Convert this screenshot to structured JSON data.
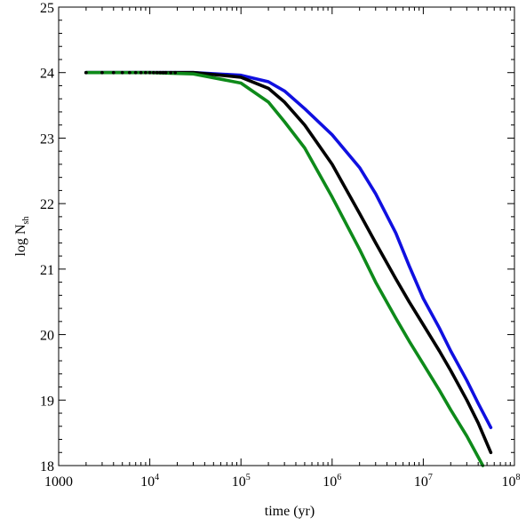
{
  "chart_data": {
    "type": "line",
    "xlabel": "time (yr)",
    "ylabel": "log N",
    "ylabel_subscript": "sh",
    "x_scale": "log",
    "xlim": [
      1000,
      100000000
    ],
    "ylim": [
      18,
      25
    ],
    "x_ticks": [
      {
        "value": 1000,
        "label": "1000",
        "exp": ""
      },
      {
        "value": 10000,
        "label": "10",
        "exp": "4"
      },
      {
        "value": 100000,
        "label": "10",
        "exp": "5"
      },
      {
        "value": 1000000,
        "label": "10",
        "exp": "6"
      },
      {
        "value": 10000000,
        "label": "10",
        "exp": "7"
      },
      {
        "value": 100000000,
        "label": "10",
        "exp": "8"
      }
    ],
    "y_ticks": [
      "18",
      "19",
      "20",
      "21",
      "22",
      "23",
      "24",
      "25"
    ],
    "grid": false,
    "series": [
      {
        "color": "#1010e0",
        "x": [
          2000,
          10000,
          30000,
          100000,
          200000,
          300000,
          500000,
          1000000,
          2000000,
          3000000,
          5000000,
          7000000,
          10000000,
          15000000,
          20000000,
          30000000,
          40000000,
          55000000
        ],
        "y": [
          24.0,
          24.0,
          24.0,
          23.96,
          23.86,
          23.72,
          23.45,
          23.05,
          22.55,
          22.15,
          21.55,
          21.05,
          20.55,
          20.1,
          19.75,
          19.3,
          18.95,
          18.58
        ]
      },
      {
        "color": "#000000",
        "x": [
          2000,
          10000,
          30000,
          100000,
          200000,
          300000,
          500000,
          1000000,
          2000000,
          3000000,
          5000000,
          7000000,
          10000000,
          15000000,
          20000000,
          30000000,
          40000000,
          55000000
        ],
        "y": [
          24.0,
          24.0,
          24.0,
          23.93,
          23.76,
          23.55,
          23.2,
          22.6,
          21.85,
          21.4,
          20.85,
          20.5,
          20.15,
          19.75,
          19.45,
          19.0,
          18.65,
          18.2
        ]
      },
      {
        "color": "#0e8a1a",
        "x": [
          2000,
          10000,
          30000,
          100000,
          200000,
          300000,
          500000,
          1000000,
          2000000,
          3000000,
          5000000,
          7000000,
          10000000,
          15000000,
          20000000,
          30000000,
          45000000
        ],
        "y": [
          24.0,
          24.0,
          23.98,
          23.84,
          23.55,
          23.25,
          22.85,
          22.1,
          21.3,
          20.8,
          20.25,
          19.9,
          19.55,
          19.15,
          18.85,
          18.45,
          18.0
        ]
      }
    ],
    "markers_series": {
      "color": "#000000",
      "x": [
        2000,
        3000,
        4000,
        5000,
        6000,
        7000,
        8000,
        9000,
        10000,
        11000,
        12000,
        13000,
        14000,
        15000,
        17000,
        19000
      ],
      "y": [
        24,
        24,
        24,
        24,
        24,
        24,
        24,
        24,
        24,
        24,
        24,
        24,
        24,
        24,
        24,
        24
      ]
    }
  }
}
